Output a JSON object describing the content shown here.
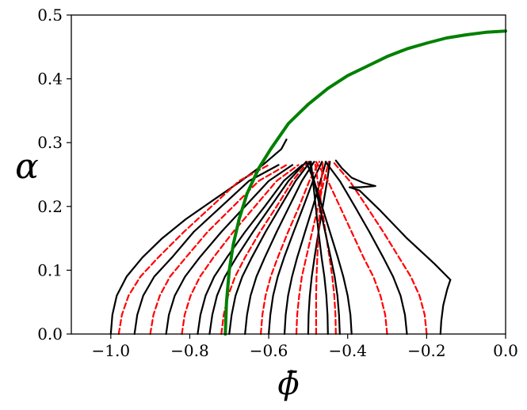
{
  "chart_data": {
    "type": "line",
    "title": "",
    "xlabel": "ϕ̄",
    "ylabel": "α",
    "xlim": [
      -1.1,
      0.0
    ],
    "ylim": [
      0.0,
      0.5
    ],
    "x_ticks": [
      -1.0,
      -0.8,
      -0.6,
      -0.4,
      -0.2,
      0.0
    ],
    "x_tick_labels": [
      "−1.0",
      "−0.8",
      "−0.6",
      "−0.4",
      "−0.2",
      "0.0"
    ],
    "y_ticks": [
      0.0,
      0.1,
      0.2,
      0.3,
      0.4,
      0.5
    ],
    "y_tick_labels": [
      "0.0",
      "0.1",
      "0.2",
      "0.3",
      "0.4",
      "0.5"
    ],
    "grid": false,
    "legend": "none",
    "colors": {
      "solid": "#000000",
      "dashed": "#ff0000",
      "boundary": "#008000"
    },
    "series": [
      {
        "style": "solid",
        "color": "#000000",
        "x": [
          -1.0,
          -0.996,
          -0.985,
          -0.96,
          -0.92,
          -0.87,
          -0.81,
          -0.74,
          -0.67,
          -0.615,
          -0.568,
          -0.555
        ],
        "y": [
          0.0,
          0.03,
          0.06,
          0.09,
          0.12,
          0.15,
          0.18,
          0.21,
          0.24,
          0.265,
          0.29,
          0.305
        ]
      },
      {
        "style": "dashed",
        "color": "#ff0000",
        "x": [
          -0.98,
          -0.972,
          -0.955,
          -0.925,
          -0.88,
          -0.815,
          -0.745,
          -0.675,
          -0.6
        ],
        "y": [
          0.0,
          0.03,
          0.06,
          0.09,
          0.12,
          0.16,
          0.2,
          0.24,
          0.265
        ]
      },
      {
        "style": "solid",
        "color": "#000000",
        "x": [
          -0.94,
          -0.933,
          -0.918,
          -0.89,
          -0.845,
          -0.79,
          -0.72,
          -0.65,
          -0.575
        ],
        "y": [
          0.0,
          0.03,
          0.06,
          0.09,
          0.12,
          0.16,
          0.2,
          0.24,
          0.265
        ]
      },
      {
        "style": "dashed",
        "color": "#ff0000",
        "x": [
          -0.9,
          -0.892,
          -0.876,
          -0.85,
          -0.81,
          -0.755,
          -0.69,
          -0.625,
          -0.555
        ],
        "y": [
          0.0,
          0.03,
          0.06,
          0.09,
          0.12,
          0.16,
          0.2,
          0.24,
          0.265
        ]
      },
      {
        "style": "solid",
        "color": "#000000",
        "x": [
          -0.86,
          -0.853,
          -0.838,
          -0.812,
          -0.775,
          -0.72,
          -0.66,
          -0.6,
          -0.54
        ],
        "y": [
          0.0,
          0.03,
          0.06,
          0.09,
          0.12,
          0.16,
          0.2,
          0.24,
          0.265
        ]
      },
      {
        "style": "dashed",
        "color": "#ff0000",
        "x": [
          -0.82,
          -0.813,
          -0.798,
          -0.774,
          -0.74,
          -0.69,
          -0.635,
          -0.58,
          -0.525
        ],
        "y": [
          0.0,
          0.03,
          0.06,
          0.09,
          0.12,
          0.16,
          0.2,
          0.24,
          0.265
        ]
      },
      {
        "style": "solid",
        "color": "#000000",
        "x": [
          -0.78,
          -0.773,
          -0.76,
          -0.738,
          -0.706,
          -0.66,
          -0.61,
          -0.562,
          -0.515
        ],
        "y": [
          0.0,
          0.03,
          0.06,
          0.09,
          0.12,
          0.16,
          0.2,
          0.24,
          0.265
        ]
      },
      {
        "style": "solid",
        "color": "#000000",
        "x": [
          -0.75,
          -0.743,
          -0.731,
          -0.711,
          -0.682,
          -0.64,
          -0.595,
          -0.55,
          -0.505
        ],
        "y": [
          0.0,
          0.03,
          0.06,
          0.09,
          0.12,
          0.16,
          0.2,
          0.24,
          0.27
        ]
      },
      {
        "style": "dashed",
        "color": "#ff0000",
        "x": [
          -0.72,
          -0.714,
          -0.703,
          -0.685,
          -0.66,
          -0.622,
          -0.58,
          -0.54,
          -0.5
        ],
        "y": [
          0.0,
          0.03,
          0.06,
          0.09,
          0.12,
          0.16,
          0.2,
          0.24,
          0.27
        ]
      },
      {
        "style": "solid",
        "color": "#000000",
        "x": [
          -0.7,
          -0.694,
          -0.684,
          -0.667,
          -0.643,
          -0.608,
          -0.57,
          -0.532,
          -0.495
        ],
        "y": [
          0.0,
          0.03,
          0.06,
          0.09,
          0.12,
          0.16,
          0.2,
          0.24,
          0.27
        ]
      },
      {
        "style": "solid",
        "color": "#000000",
        "x": [
          -0.66,
          -0.655,
          -0.646,
          -0.631,
          -0.61,
          -0.58,
          -0.548,
          -0.516,
          -0.485
        ],
        "y": [
          0.0,
          0.03,
          0.06,
          0.09,
          0.12,
          0.16,
          0.2,
          0.24,
          0.27
        ]
      },
      {
        "style": "dashed",
        "color": "#ff0000",
        "x": [
          -0.62,
          -0.616,
          -0.608,
          -0.595,
          -0.577,
          -0.551,
          -0.523,
          -0.497,
          -0.472
        ],
        "y": [
          0.0,
          0.03,
          0.06,
          0.09,
          0.12,
          0.16,
          0.2,
          0.24,
          0.27
        ]
      },
      {
        "style": "solid",
        "color": "#000000",
        "x": [
          -0.6,
          -0.596,
          -0.589,
          -0.577,
          -0.561,
          -0.537,
          -0.512,
          -0.488,
          -0.465
        ],
        "y": [
          0.0,
          0.03,
          0.06,
          0.09,
          0.12,
          0.16,
          0.2,
          0.24,
          0.27
        ]
      },
      {
        "style": "solid",
        "color": "#000000",
        "x": [
          -0.56,
          -0.557,
          -0.551,
          -0.541,
          -0.528,
          -0.508,
          -0.488,
          -0.469,
          -0.455
        ],
        "y": [
          0.0,
          0.03,
          0.06,
          0.09,
          0.12,
          0.16,
          0.2,
          0.24,
          0.27
        ]
      },
      {
        "style": "dashed",
        "color": "#ff0000",
        "x": [
          -0.53,
          -0.528,
          -0.523,
          -0.516,
          -0.505,
          -0.49,
          -0.475,
          -0.46,
          -0.448
        ],
        "y": [
          0.0,
          0.03,
          0.06,
          0.09,
          0.12,
          0.16,
          0.2,
          0.24,
          0.27
        ]
      },
      {
        "style": "solid",
        "color": "#000000",
        "x": [
          -0.5,
          -0.499,
          -0.496,
          -0.491,
          -0.484,
          -0.474,
          -0.463,
          -0.452,
          -0.445
        ],
        "y": [
          0.0,
          0.03,
          0.06,
          0.09,
          0.12,
          0.16,
          0.2,
          0.24,
          0.27
        ]
      },
      {
        "style": "dashed",
        "color": "#ff0000",
        "x": [
          -0.48,
          -0.48,
          -0.48,
          -0.479,
          -0.477,
          -0.474,
          -0.47,
          -0.466,
          -0.463
        ],
        "y": [
          0.0,
          0.03,
          0.06,
          0.09,
          0.12,
          0.16,
          0.2,
          0.24,
          0.27
        ]
      },
      {
        "style": "solid",
        "color": "#000000",
        "x": [
          -0.45,
          -0.451,
          -0.454,
          -0.459,
          -0.466,
          -0.474,
          -0.481,
          -0.488,
          -0.493
        ],
        "y": [
          0.0,
          0.03,
          0.06,
          0.09,
          0.12,
          0.16,
          0.2,
          0.24,
          0.27
        ]
      },
      {
        "style": "dashed",
        "color": "#ff0000",
        "x": [
          -0.43,
          -0.431,
          -0.434,
          -0.439,
          -0.446,
          -0.456,
          -0.466,
          -0.476,
          -0.483
        ],
        "y": [
          0.0,
          0.03,
          0.06,
          0.09,
          0.12,
          0.16,
          0.2,
          0.24,
          0.27
        ]
      },
      {
        "style": "solid",
        "color": "#000000",
        "x": [
          -0.42,
          -0.422,
          -0.426,
          -0.433,
          -0.443,
          -0.457,
          -0.471,
          -0.485,
          -0.497
        ],
        "y": [
          0.0,
          0.03,
          0.06,
          0.09,
          0.12,
          0.16,
          0.2,
          0.24,
          0.27
        ]
      },
      {
        "style": "solid",
        "color": "#000000",
        "x": [
          -0.39,
          -0.393,
          -0.4,
          -0.411,
          -0.425,
          -0.445,
          -0.465,
          -0.485,
          -0.505
        ],
        "y": [
          0.0,
          0.03,
          0.06,
          0.09,
          0.12,
          0.16,
          0.2,
          0.24,
          0.27
        ]
      },
      {
        "style": "dashed",
        "color": "#ff0000",
        "x": [
          -0.3,
          -0.305,
          -0.317,
          -0.335,
          -0.36,
          -0.39,
          -0.42,
          -0.45,
          -0.48
        ],
        "y": [
          0.0,
          0.03,
          0.06,
          0.09,
          0.12,
          0.16,
          0.2,
          0.24,
          0.27
        ]
      },
      {
        "style": "solid",
        "color": "#000000",
        "x": [
          -0.25,
          -0.255,
          -0.266,
          -0.285,
          -0.31,
          -0.345,
          -0.382,
          -0.42,
          -0.456
        ],
        "y": [
          0.0,
          0.03,
          0.06,
          0.09,
          0.12,
          0.16,
          0.2,
          0.24,
          0.27
        ]
      },
      {
        "style": "dashed",
        "color": "#ff0000",
        "x": [
          -0.2,
          -0.205,
          -0.218,
          -0.24,
          -0.27,
          -0.31,
          -0.352,
          -0.395,
          -0.437
        ],
        "y": [
          0.0,
          0.03,
          0.06,
          0.09,
          0.12,
          0.16,
          0.2,
          0.24,
          0.27
        ]
      },
      {
        "style": "solid",
        "color": "#000000",
        "x": [
          -0.165,
          -0.163,
          -0.158,
          -0.148,
          -0.14
        ],
        "y": [
          0.0,
          0.02,
          0.045,
          0.07,
          0.085
        ]
      },
      {
        "style": "solid",
        "color": "#000000",
        "x": [
          -0.14,
          -0.18,
          -0.25,
          -0.32,
          -0.37,
          -0.395
        ],
        "y": [
          0.085,
          0.11,
          0.15,
          0.195,
          0.225,
          0.23
        ]
      },
      {
        "style": "solid",
        "color": "#000000",
        "x": [
          -0.395,
          -0.37,
          -0.33
        ],
        "y": [
          0.23,
          0.23,
          0.232
        ]
      },
      {
        "style": "solid",
        "color": "#000000",
        "x": [
          -0.33,
          -0.36,
          -0.39,
          -0.415,
          -0.43
        ],
        "y": [
          0.232,
          0.237,
          0.245,
          0.26,
          0.272
        ]
      },
      {
        "style": "boundary",
        "color": "#008000",
        "x": [
          -0.71,
          -0.707,
          -0.7,
          -0.69,
          -0.675,
          -0.655,
          -0.625,
          -0.595,
          -0.55,
          -0.5,
          -0.45,
          -0.4,
          -0.35,
          -0.3,
          -0.25,
          -0.2,
          -0.15,
          -0.1,
          -0.05,
          0.0
        ],
        "y": [
          0.0,
          0.05,
          0.1,
          0.14,
          0.18,
          0.22,
          0.26,
          0.29,
          0.33,
          0.36,
          0.385,
          0.405,
          0.42,
          0.435,
          0.447,
          0.456,
          0.464,
          0.469,
          0.473,
          0.475
        ]
      }
    ]
  }
}
